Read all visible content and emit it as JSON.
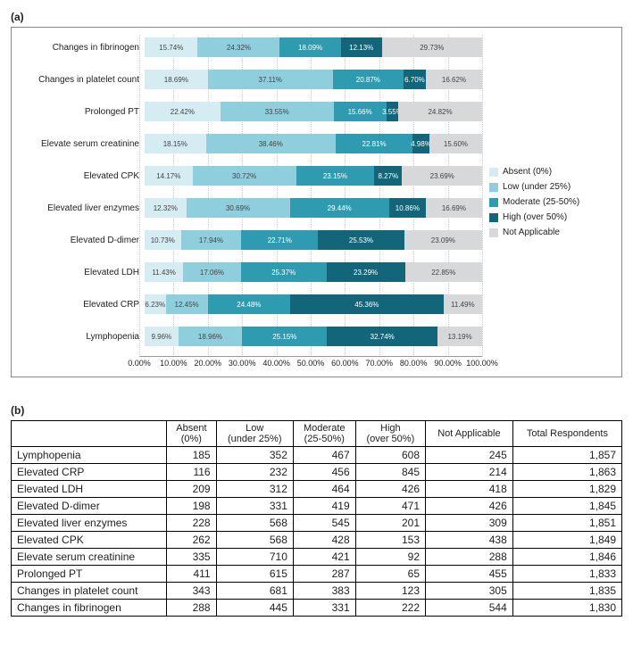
{
  "panel_a_label": "(a)",
  "panel_b_label": "(b)",
  "chart": {
    "type": "stacked-horizontal-bar",
    "xlim": [
      0,
      100
    ],
    "xtick_step": 10,
    "xtick_suffix": "%",
    "grid_color": "#cccccc",
    "border_color": "#888888",
    "label_fontsize": 10,
    "value_fontsize": 8,
    "rows": [
      {
        "label": "Changes in fibrinogen",
        "values": [
          15.74,
          24.32,
          18.09,
          12.13,
          29.73
        ]
      },
      {
        "label": "Changes in platelet count",
        "values": [
          18.69,
          37.11,
          20.87,
          6.7,
          16.62
        ]
      },
      {
        "label": "Prolonged PT",
        "values": [
          22.42,
          33.55,
          15.66,
          3.55,
          24.82
        ]
      },
      {
        "label": "Elevate serum creatinine",
        "values": [
          18.15,
          38.46,
          22.81,
          4.98,
          15.6
        ]
      },
      {
        "label": "Elevated CPK",
        "values": [
          14.17,
          30.72,
          23.15,
          8.27,
          23.69
        ]
      },
      {
        "label": "Elevated liver enzymes",
        "values": [
          12.32,
          30.69,
          29.44,
          10.86,
          16.69
        ]
      },
      {
        "label": "Elevated D-dimer",
        "values": [
          10.73,
          17.94,
          22.71,
          25.53,
          23.09
        ]
      },
      {
        "label": "Elevated LDH",
        "values": [
          11.43,
          17.06,
          25.37,
          23.29,
          22.85
        ]
      },
      {
        "label": "Elevated CRP",
        "values": [
          6.23,
          12.45,
          24.48,
          45.36,
          11.49
        ]
      },
      {
        "label": "Lymphopenia",
        "values": [
          9.96,
          18.96,
          25.15,
          32.74,
          13.19
        ]
      }
    ],
    "series": [
      {
        "name": "Absent (0%)",
        "color": "#d5ecf2",
        "text": "light"
      },
      {
        "name": "Low    (under 25%)",
        "color": "#8fcfdd",
        "text": "light"
      },
      {
        "name": "Moderate (25-50%)",
        "color": "#2f9bb0",
        "text": "dark"
      },
      {
        "name": "High (over 50%)",
        "color": "#13667a",
        "text": "dark"
      },
      {
        "name": "Not Applicable",
        "color": "#d7d8d9",
        "text": "light"
      }
    ]
  },
  "table": {
    "columns": [
      "",
      "Absent (0%)",
      "Low (under 25%)",
      "Moderate (25-50%)",
      "High (over 50%)",
      "Not Applicable",
      "Total Respondents"
    ],
    "rows": [
      [
        "Lymphopenia",
        185,
        352,
        467,
        608,
        245,
        1857
      ],
      [
        "Elevated CRP",
        116,
        232,
        456,
        845,
        214,
        1863
      ],
      [
        "Elevated LDH",
        209,
        312,
        464,
        426,
        418,
        1829
      ],
      [
        "Elevated D-dimer",
        198,
        331,
        419,
        471,
        426,
        1845
      ],
      [
        "Elevated liver enzymes",
        228,
        568,
        545,
        201,
        309,
        1851
      ],
      [
        "Elevated CPK",
        262,
        568,
        428,
        153,
        438,
        1849
      ],
      [
        "Elevate serum creatinine",
        335,
        710,
        421,
        92,
        288,
        1846
      ],
      [
        "Prolonged PT",
        411,
        615,
        287,
        65,
        455,
        1833
      ],
      [
        "Changes in platelet count",
        343,
        681,
        383,
        123,
        305,
        1835
      ],
      [
        "Changes in fibrinogen",
        288,
        445,
        331,
        222,
        544,
        1830
      ]
    ]
  }
}
